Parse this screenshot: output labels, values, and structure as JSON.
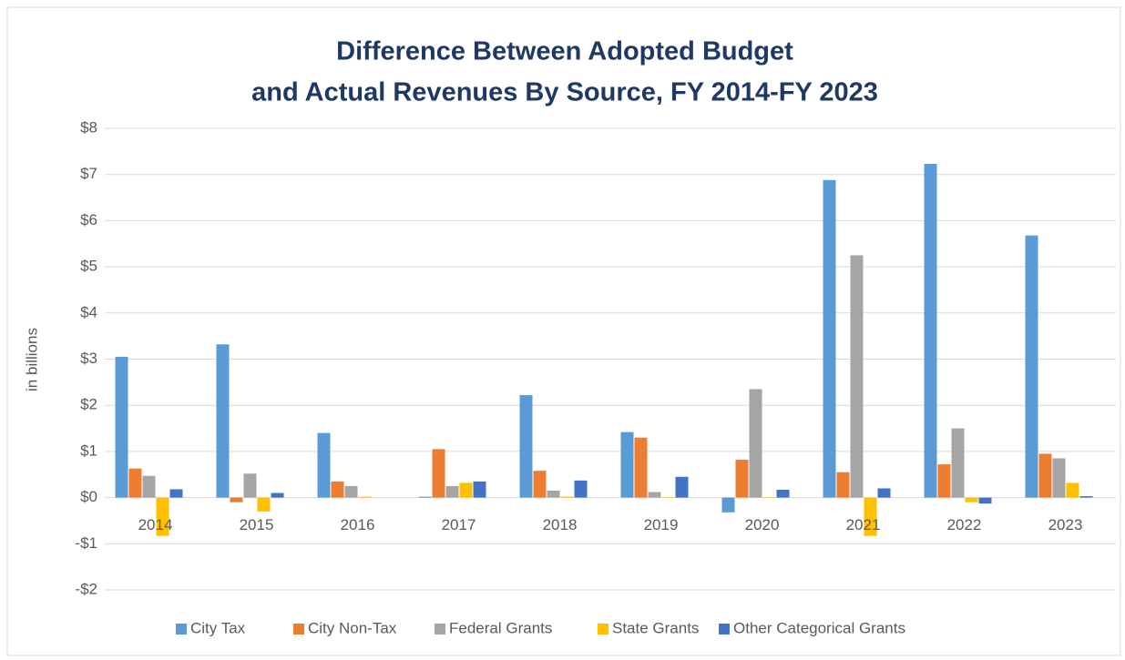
{
  "chart_data": {
    "type": "bar",
    "title": [
      "Difference Between Adopted Budget",
      "and Actual Revenues By Source, FY 2014-FY 2023"
    ],
    "y_label": "in billions",
    "categories": [
      "2014",
      "2015",
      "2016",
      "2017",
      "2018",
      "2019",
      "2020",
      "2021",
      "2022",
      "2023"
    ],
    "series": [
      {
        "name": "City Tax",
        "color": "#5b9bd5",
        "values": [
          3.05,
          3.32,
          1.4,
          0.02,
          2.22,
          1.42,
          -0.32,
          6.88,
          7.23,
          5.68
        ]
      },
      {
        "name": "City Non-Tax",
        "color": "#ed7d31",
        "values": [
          0.63,
          -0.1,
          0.35,
          1.05,
          0.58,
          1.3,
          0.82,
          0.55,
          0.72,
          0.95
        ]
      },
      {
        "name": "Federal Grants",
        "color": "#a5a5a5",
        "values": [
          0.47,
          0.52,
          0.25,
          0.25,
          0.15,
          0.12,
          2.35,
          5.25,
          1.5,
          0.85
        ]
      },
      {
        "name": "State Grants",
        "color": "#ffc000",
        "values": [
          -0.83,
          -0.3,
          0.02,
          0.32,
          0.02,
          0.01,
          0.01,
          -0.83,
          -0.1,
          0.32
        ]
      },
      {
        "name": "Other Categorical Grants",
        "color": "#4472c4",
        "values": [
          0.18,
          0.1,
          0,
          0.35,
          0.37,
          0.45,
          0.17,
          0.2,
          -0.13,
          0.03
        ]
      }
    ],
    "ylim": [
      -2,
      8
    ],
    "yticks": [
      {
        "value": -2,
        "label": "-$2"
      },
      {
        "value": -1,
        "label": "-$1"
      },
      {
        "value": 0,
        "label": "$0"
      },
      {
        "value": 1,
        "label": "$1"
      },
      {
        "value": 2,
        "label": "$2"
      },
      {
        "value": 3,
        "label": "$3"
      },
      {
        "value": 4,
        "label": "$4"
      },
      {
        "value": 5,
        "label": "$5"
      },
      {
        "value": 6,
        "label": "$6"
      },
      {
        "value": 7,
        "label": "$7"
      },
      {
        "value": 8,
        "label": "$8"
      }
    ],
    "grid": true,
    "legend": "bottom"
  }
}
